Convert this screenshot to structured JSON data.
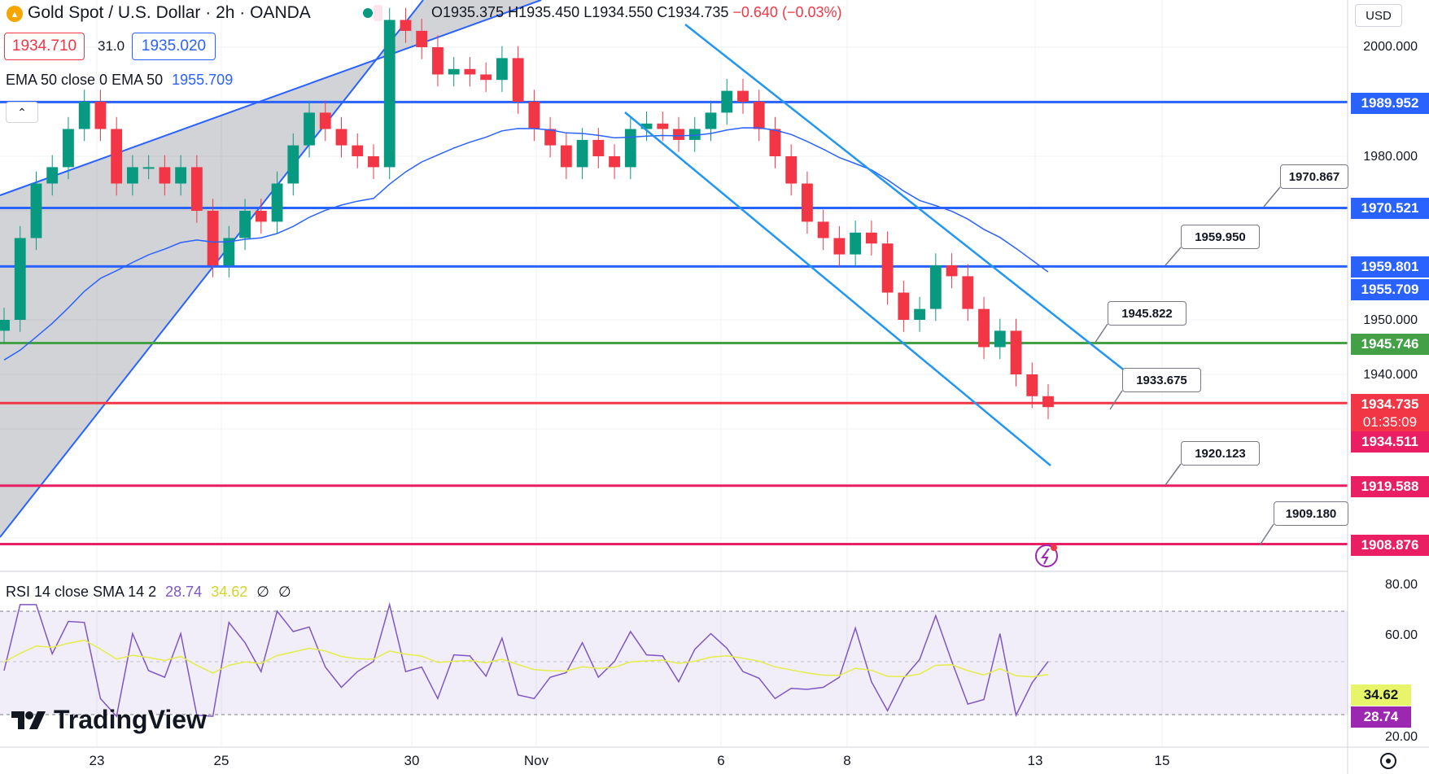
{
  "header": {
    "symbol_title": "Gold Spot / U.S. Dollar · 2h · OANDA",
    "open": "O1935.375",
    "high": "H1935.450",
    "low": "L1934.550",
    "close": "C1934.735",
    "change": "−0.640 (−0.03%)",
    "bid": "1934.710",
    "spread": "31.0",
    "ask": "1935.020",
    "currency": "USD"
  },
  "indicators": {
    "ema_label": "EMA 50 close 0 EMA 50",
    "ema_value": "1955.709",
    "rsi_label": "RSI 14 close SMA 14 2",
    "rsi_value": "28.74",
    "rsi_sma_value": "34.62",
    "rsi_extra1": "∅",
    "rsi_extra2": "∅"
  },
  "price_axis": {
    "labels": [
      "2000.000",
      "1980.000",
      "1950.000",
      "1940.000"
    ],
    "tags": [
      {
        "text": "1989.952",
        "color": "#2962ff"
      },
      {
        "text": "1970.521",
        "color": "#2962ff"
      },
      {
        "text": "1959.801",
        "color": "#2962ff"
      },
      {
        "text": "1955.709",
        "color": "#2962ff"
      },
      {
        "text": "1945.746",
        "color": "#43a047"
      },
      {
        "text": "1934.735",
        "color": "#f23645"
      },
      {
        "text": "01:35:09",
        "color": "#f23645"
      },
      {
        "text": "1934.511",
        "color": "#e91e63"
      },
      {
        "text": "1919.588",
        "color": "#e91e63"
      },
      {
        "text": "1908.876",
        "color": "#e91e63"
      }
    ]
  },
  "rsi_axis": {
    "labels": [
      "80.00",
      "60.00",
      "20.00"
    ],
    "tags": [
      {
        "text": "34.62",
        "color": "#e8f56a"
      },
      {
        "text": "28.74",
        "color": "#9c27b0"
      }
    ]
  },
  "callouts": [
    "1970.867",
    "1959.950",
    "1945.822",
    "1933.675",
    "1920.123",
    "1909.180"
  ],
  "time_axis": [
    "23",
    "25",
    "30",
    "Nov",
    "6",
    "8",
    "13",
    "15"
  ],
  "branding": {
    "logo_text": "TradingView"
  },
  "chart_data": {
    "type": "candlestick",
    "symbol": "Gold Spot / U.S. Dollar",
    "interval": "2h",
    "price_range": [
      1900,
      2005
    ],
    "horizontal_levels": [
      1989.952,
      1970.521,
      1959.801,
      1945.746,
      1934.735,
      1919.588,
      1908.876
    ],
    "close_path": [
      1950,
      1965,
      1975,
      1978,
      1985,
      1990,
      1985,
      1975,
      1978,
      1978,
      1975,
      1978,
      1970,
      1960,
      1965,
      1970,
      1968,
      1975,
      1982,
      1988,
      1985,
      1982,
      1980,
      1978,
      2005,
      2003,
      2000,
      1995,
      1996,
      1995,
      1994,
      1998,
      1990,
      1985,
      1982,
      1978,
      1983,
      1980,
      1978,
      1985,
      1986,
      1985,
      1983,
      1985,
      1988,
      1992,
      1990,
      1985,
      1980,
      1975,
      1968,
      1965,
      1962,
      1966,
      1964,
      1955,
      1950,
      1952,
      1960,
      1958,
      1952,
      1945,
      1948,
      1940,
      1936,
      1934
    ]
  }
}
